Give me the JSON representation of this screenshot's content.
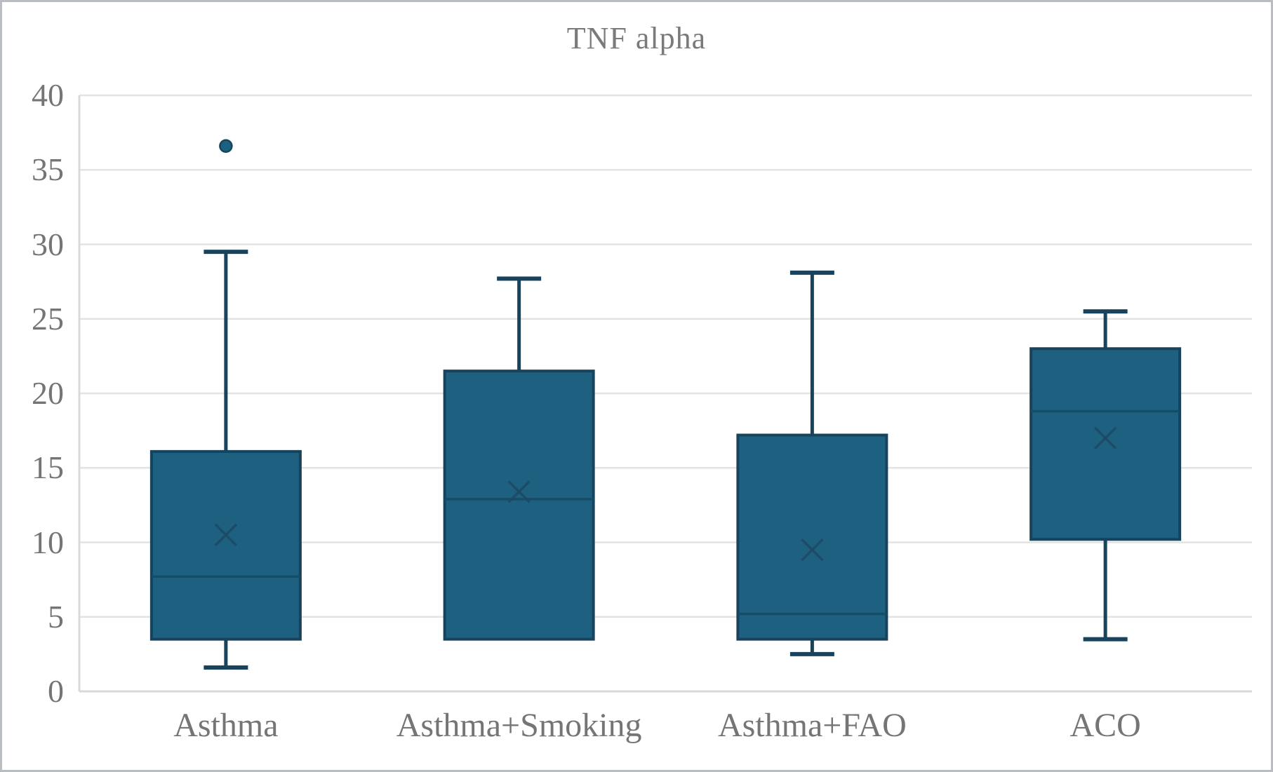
{
  "chart_data": {
    "type": "boxplot",
    "title": "TNF alpha",
    "xlabel": "",
    "ylabel": "",
    "categories": [
      "Asthma",
      "Asthma+Smoking",
      "Asthma+FAO",
      "ACO"
    ],
    "ylim": [
      0,
      40
    ],
    "ytick_step": 5,
    "ytick_labels": [
      "0",
      "5",
      "10",
      "15",
      "20",
      "25",
      "30",
      "35",
      "40"
    ],
    "grid": true,
    "legend_position": "none",
    "series": [
      {
        "name": "Asthma",
        "whisker_low": 1.6,
        "q1": 3.5,
        "median": 7.7,
        "q3": 16.1,
        "whisker_high": 29.5,
        "mean": 10.5,
        "outliers": [
          36.6
        ]
      },
      {
        "name": "Asthma+Smoking",
        "whisker_low": 3.5,
        "q1": 3.5,
        "median": 12.9,
        "q3": 21.5,
        "whisker_high": 27.7,
        "mean": 13.4,
        "outliers": []
      },
      {
        "name": "Asthma+FAO",
        "whisker_low": 2.5,
        "q1": 3.5,
        "median": 5.2,
        "q3": 17.2,
        "whisker_high": 28.1,
        "mean": 9.5,
        "outliers": []
      },
      {
        "name": "ACO",
        "whisker_low": 3.5,
        "q1": 10.2,
        "median": 18.8,
        "q3": 23.0,
        "whisker_high": 25.5,
        "mean": 17.0,
        "outliers": []
      }
    ],
    "colors": {
      "box_fill": "#1E6080",
      "box_border": "#17435C",
      "whisker": "#17435C",
      "median": "#174C66",
      "mean_marker": "#1C4963",
      "outlier_fill": "#1E6080",
      "outlier_border": "#16455E",
      "gridline": "#E3E3E3",
      "axis_line": "#D9D9D9",
      "text": "#757575",
      "frame": "#B9BDC1"
    }
  }
}
